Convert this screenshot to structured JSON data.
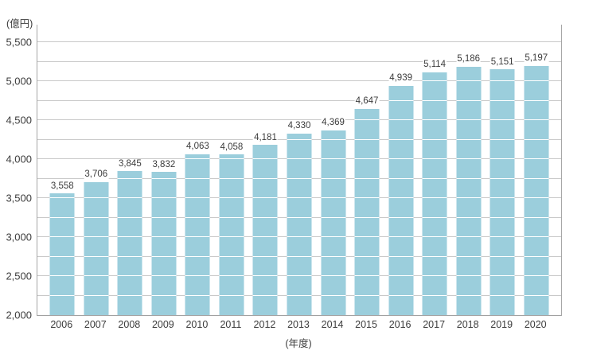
{
  "chart_data": {
    "type": "bar",
    "title": "",
    "ylabel": "(億円)",
    "xlabel": "(年度)",
    "categories": [
      "2006",
      "2007",
      "2008",
      "2009",
      "2010",
      "2011",
      "2012",
      "2013",
      "2014",
      "2015",
      "2016",
      "2017",
      "2018",
      "2019",
      "2020"
    ],
    "values": [
      3558,
      3706,
      3845,
      3832,
      4063,
      4058,
      4181,
      4330,
      4369,
      4647,
      4939,
      5114,
      5186,
      5151,
      5197
    ],
    "value_labels": [
      "3,558",
      "3,706",
      "3,845",
      "3,832",
      "4,063",
      "4,058",
      "4,181",
      "4,330",
      "4,369",
      "4,647",
      "4,939",
      "5,114",
      "5,186",
      "5,151",
      "5,197"
    ],
    "ylim": [
      2000,
      5500
    ],
    "y_tick_interval": 500,
    "y_tick_labels": [
      "2,000",
      "2,500",
      "3,000",
      "3,500",
      "4,000",
      "4,500",
      "5,000",
      "5,500"
    ],
    "grid_interval": 250,
    "grid": true,
    "legend": "none",
    "colors": {
      "bar": "#9bcedc",
      "gridline": "#c9c9c9",
      "axis": "#a6a6a6",
      "text": "#3c3c3c",
      "background": "#ffffff"
    }
  }
}
